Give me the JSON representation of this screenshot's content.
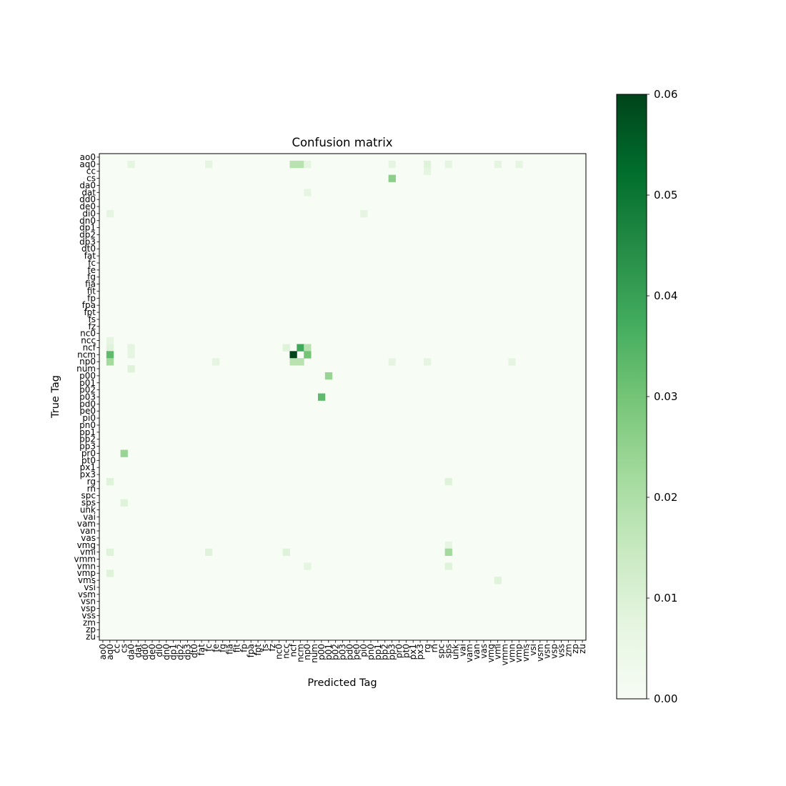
{
  "chart_data": {
    "type": "heatmap",
    "title": "Confusion matrix",
    "xlabel": "Predicted Tag",
    "ylabel": "True Tag",
    "labels": [
      "ao0",
      "aq0",
      "cc",
      "cs",
      "da0",
      "dat",
      "dd0",
      "de0",
      "di0",
      "dn0",
      "dp1",
      "dp2",
      "dp3",
      "dt0",
      "fat",
      "fc",
      "fe",
      "fg",
      "fia",
      "fit",
      "fp",
      "fpa",
      "fpt",
      "fs",
      "fz",
      "nc0",
      "ncc",
      "ncf",
      "ncm",
      "np0",
      "num",
      "p00",
      "p01",
      "p02",
      "p03",
      "pd0",
      "pe0",
      "pi0",
      "pn0",
      "pp1",
      "pp2",
      "pp3",
      "pr0",
      "pt0",
      "px1",
      "px3",
      "rg",
      "rn",
      "spc",
      "sps",
      "unk",
      "vai",
      "vam",
      "van",
      "vas",
      "vmg",
      "vmi",
      "vmm",
      "vmn",
      "vmp",
      "vms",
      "vsi",
      "vsm",
      "vsn",
      "vsp",
      "vss",
      "zm",
      "zp",
      "zu"
    ],
    "vmin": 0.0,
    "vmax": 0.06,
    "colorbar_ticks": [
      "0.00",
      "0.01",
      "0.02",
      "0.03",
      "0.04",
      "0.05",
      "0.06"
    ],
    "colormap": "Greens",
    "cells": [
      {
        "row": "aq0",
        "col": "da0",
        "value": 0.007
      },
      {
        "row": "aq0",
        "col": "fc",
        "value": 0.007
      },
      {
        "row": "aq0",
        "col": "ncf",
        "value": 0.018
      },
      {
        "row": "aq0",
        "col": "ncm",
        "value": 0.018
      },
      {
        "row": "aq0",
        "col": "np0",
        "value": 0.007
      },
      {
        "row": "aq0",
        "col": "pp3",
        "value": 0.007
      },
      {
        "row": "aq0",
        "col": "rg",
        "value": 0.009
      },
      {
        "row": "aq0",
        "col": "sps",
        "value": 0.007
      },
      {
        "row": "aq0",
        "col": "vmi",
        "value": 0.007
      },
      {
        "row": "aq0",
        "col": "vmp",
        "value": 0.007
      },
      {
        "row": "cc",
        "col": "rg",
        "value": 0.007
      },
      {
        "row": "cs",
        "col": "pp3",
        "value": 0.026
      },
      {
        "row": "dat",
        "col": "np0",
        "value": 0.007
      },
      {
        "row": "di0",
        "col": "aq0",
        "value": 0.007
      },
      {
        "row": "di0",
        "col": "pi0",
        "value": 0.007
      },
      {
        "row": "ncc",
        "col": "aq0",
        "value": 0.007
      },
      {
        "row": "ncf",
        "col": "aq0",
        "value": 0.009
      },
      {
        "row": "ncf",
        "col": "da0",
        "value": 0.007
      },
      {
        "row": "ncf",
        "col": "ncc",
        "value": 0.009
      },
      {
        "row": "ncf",
        "col": "ncm",
        "value": 0.038
      },
      {
        "row": "ncf",
        "col": "np0",
        "value": 0.018
      },
      {
        "row": "ncm",
        "col": "aq0",
        "value": 0.033
      },
      {
        "row": "ncm",
        "col": "da0",
        "value": 0.007
      },
      {
        "row": "ncm",
        "col": "ncf",
        "value": 0.06
      },
      {
        "row": "ncm",
        "col": "np0",
        "value": 0.03
      },
      {
        "row": "np0",
        "col": "aq0",
        "value": 0.022
      },
      {
        "row": "np0",
        "col": "fe",
        "value": 0.007
      },
      {
        "row": "np0",
        "col": "ncf",
        "value": 0.018
      },
      {
        "row": "np0",
        "col": "ncm",
        "value": 0.018
      },
      {
        "row": "np0",
        "col": "pp3",
        "value": 0.007
      },
      {
        "row": "np0",
        "col": "rg",
        "value": 0.007
      },
      {
        "row": "np0",
        "col": "vmn",
        "value": 0.007
      },
      {
        "row": "num",
        "col": "da0",
        "value": 0.009
      },
      {
        "row": "p00",
        "col": "p01",
        "value": 0.024
      },
      {
        "row": "p03",
        "col": "p00",
        "value": 0.033
      },
      {
        "row": "pr0",
        "col": "cs",
        "value": 0.024
      },
      {
        "row": "rg",
        "col": "aq0",
        "value": 0.009
      },
      {
        "row": "rg",
        "col": "sps",
        "value": 0.009
      },
      {
        "row": "sps",
        "col": "cs",
        "value": 0.009
      },
      {
        "row": "vmg",
        "col": "sps",
        "value": 0.007
      },
      {
        "row": "vmi",
        "col": "aq0",
        "value": 0.009
      },
      {
        "row": "vmi",
        "col": "fc",
        "value": 0.009
      },
      {
        "row": "vmi",
        "col": "ncc",
        "value": 0.009
      },
      {
        "row": "vmi",
        "col": "sps",
        "value": 0.022
      },
      {
        "row": "vmn",
        "col": "np0",
        "value": 0.007
      },
      {
        "row": "vmn",
        "col": "sps",
        "value": 0.009
      },
      {
        "row": "vmp",
        "col": "aq0",
        "value": 0.009
      },
      {
        "row": "vms",
        "col": "vmi",
        "value": 0.009
      }
    ]
  }
}
